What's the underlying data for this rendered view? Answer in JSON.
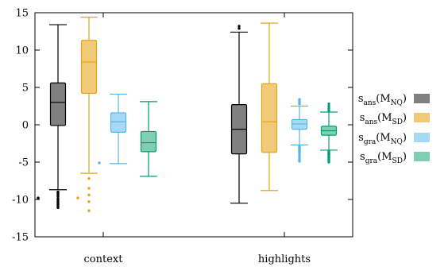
{
  "chart_data": {
    "type": "box",
    "ylim": [
      -15,
      15
    ],
    "yticks": [
      -15,
      -10,
      -5,
      0,
      5,
      10,
      15
    ],
    "ytick_labels": [
      "-15",
      "-10",
      "-5",
      "0",
      "5",
      "10",
      "15"
    ],
    "grid": false,
    "legend_position": "right",
    "categories": [
      "context",
      "highlights"
    ],
    "series": [
      {
        "name_main": "s",
        "name_sub": "ans",
        "name_arg": "M",
        "name_arg_sub": "NQ",
        "color": "#808080",
        "stroke": "#000000",
        "boxes": [
          {
            "category": "context",
            "whisker_low": -8.7,
            "q1": -0.1,
            "median": 3.0,
            "q3": 5.6,
            "whisker_high": 13.4,
            "outliers": [
              -9.8,
              -9.0,
              -9.2,
              -9.4,
              -9.6,
              -9.9,
              -10.1,
              -10.3,
              -10.5,
              -10.7,
              -10.9,
              -11.1
            ]
          },
          {
            "category": "highlights",
            "whisker_low": -10.5,
            "q1": -3.9,
            "median": -0.6,
            "q3": 2.7,
            "whisker_high": 12.4,
            "outliers": [
              12.9,
              13.2
            ]
          }
        ]
      },
      {
        "name_main": "s",
        "name_sub": "ans",
        "name_arg": "M",
        "name_arg_sub": "SD",
        "color": "#f2c978",
        "stroke": "#e6a417",
        "boxes": [
          {
            "category": "context",
            "whisker_low": -6.5,
            "q1": 4.2,
            "median": 8.4,
            "q3": 11.3,
            "whisker_high": 14.4,
            "outliers": [
              -9.8,
              -7.2,
              -8.5,
              -9.4,
              -10.3,
              -11.5
            ]
          },
          {
            "category": "highlights",
            "whisker_low": -8.8,
            "q1": -3.7,
            "median": 0.4,
            "q3": 5.5,
            "whisker_high": 13.6,
            "outliers": []
          }
        ]
      },
      {
        "name_main": "s",
        "name_sub": "gra",
        "name_arg": "M",
        "name_arg_sub": "NQ",
        "color": "#a7d9f5",
        "stroke": "#56b4e9",
        "boxes": [
          {
            "category": "context",
            "whisker_low": -5.2,
            "q1": -1.0,
            "median": 0.4,
            "q3": 1.6,
            "whisker_high": 4.1,
            "outliers": [
              -5.1
            ]
          },
          {
            "category": "highlights",
            "whisker_low": -2.7,
            "q1": -0.6,
            "median": 0.1,
            "q3": 0.7,
            "whisker_high": 2.5,
            "outliers": [
              2.8,
              3.0,
              3.2,
              3.4,
              -2.9,
              -3.2,
              -3.5,
              -3.8,
              -4.1,
              -4.4,
              -4.7,
              -4.9,
              -3.0,
              -3.3,
              -3.6
            ]
          }
        ]
      },
      {
        "name_main": "s",
        "name_sub": "gra",
        "name_arg": "M",
        "name_arg_sub": "SD",
        "color": "#7fcfb3",
        "stroke": "#009e73",
        "boxes": [
          {
            "category": "context",
            "whisker_low": -6.9,
            "q1": -3.6,
            "median": -2.4,
            "q3": -0.9,
            "whisker_high": 3.1,
            "outliers": []
          },
          {
            "category": "highlights",
            "whisker_low": -3.4,
            "q1": -1.4,
            "median": -0.8,
            "q3": -0.2,
            "whisker_high": 1.7,
            "outliers": [
              1.9,
              2.2,
              2.5,
              2.8,
              -3.6,
              -3.8,
              -4.0,
              -4.2,
              -4.4,
              -4.6,
              -4.8,
              -5.0,
              -3.5,
              -3.9,
              -4.3
            ]
          }
        ]
      }
    ]
  }
}
